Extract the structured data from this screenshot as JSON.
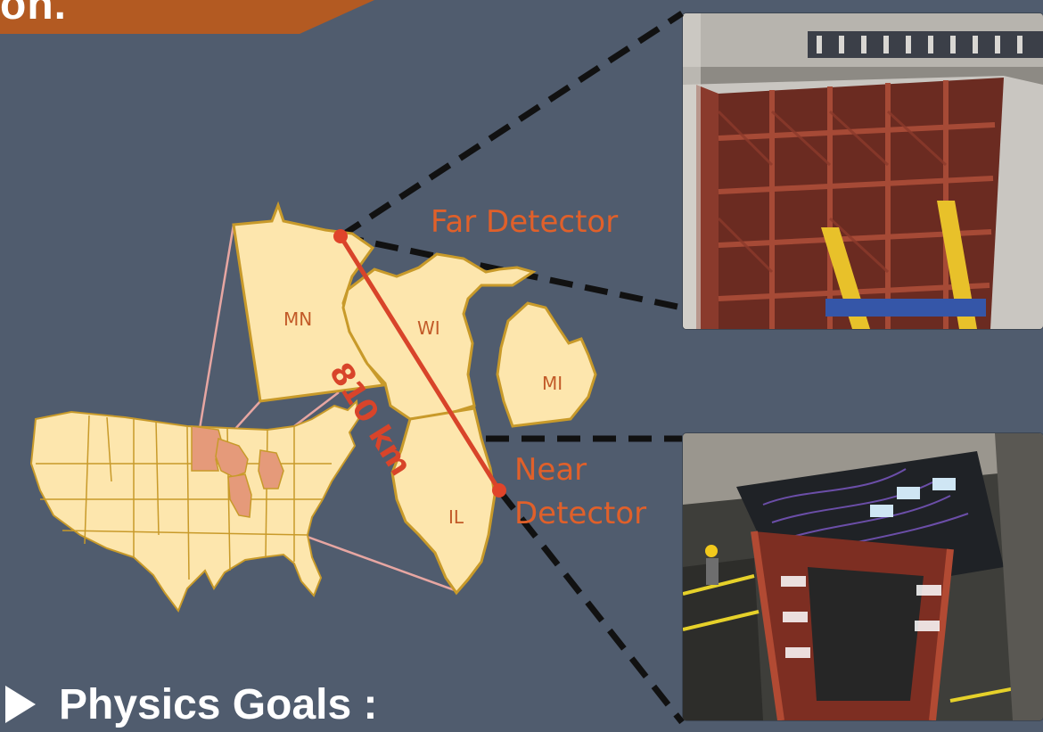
{
  "slide": {
    "title_partial": "on.",
    "bullet_text": "Physics Goals :"
  },
  "map": {
    "states": {
      "mn": "MN",
      "wi": "WI",
      "mi": "MI",
      "il": "IL"
    },
    "distance_label": "810 km",
    "far_detector_label": "Far Detector",
    "near_detector_label_line1": "Near",
    "near_detector_label_line2": "Detector"
  },
  "colors": {
    "background": "#505c6e",
    "title_bar": "#b35a22",
    "state_fill": "#fde6ad",
    "state_stroke": "#c89a2a",
    "highlight_fill": "#e59a7a",
    "accent_orange": "#e0602a",
    "beam_red": "#d8442a"
  },
  "icons": {
    "bullet": "triangle-right-icon",
    "detector_marker": "circle-dot-icon"
  }
}
